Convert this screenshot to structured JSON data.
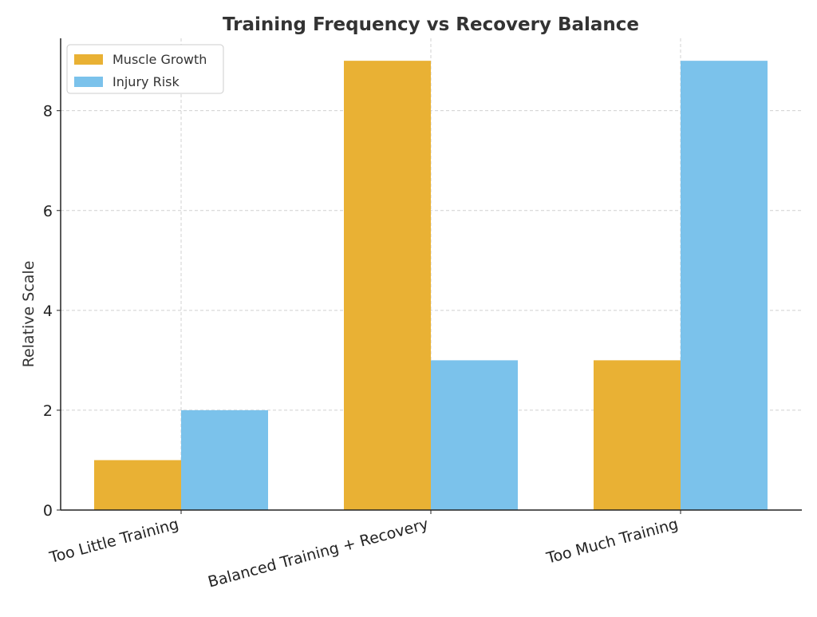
{
  "chart_data": {
    "type": "bar",
    "title": "Training Frequency vs Recovery Balance",
    "xlabel": "",
    "ylabel": "Relative Scale",
    "categories": [
      "Too Little Training",
      "Balanced Training + Recovery",
      "Too Much Training"
    ],
    "series": [
      {
        "name": "Muscle Growth",
        "values": [
          1,
          9,
          3
        ],
        "color": "#E9B134"
      },
      {
        "name": "Injury Risk",
        "values": [
          2,
          3,
          9
        ],
        "color": "#7BC2EB"
      }
    ],
    "ylim": [
      0,
      9.45
    ],
    "yticks": [
      0,
      2,
      4,
      6,
      8
    ],
    "grid": true,
    "legend_position": "top-left"
  }
}
